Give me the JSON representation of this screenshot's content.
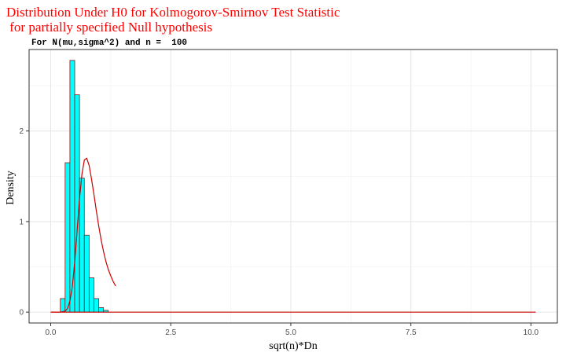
{
  "chart_data": {
    "type": "bar",
    "title_lines": [
      "Distribution Under H0 for Kolmogorov-Smirnov Test Statistic",
      " for partially specified Null hypothesis"
    ],
    "subtitle": "For N(mu,sigma^2) and n =  100",
    "xlabel": "sqrt(n)*Dn",
    "ylabel": "Density",
    "xlim": [
      -0.45,
      10.55
    ],
    "ylim": [
      -0.12,
      2.9
    ],
    "x_ticks": [
      0,
      2.5,
      5,
      7.5,
      10
    ],
    "x_tick_labels": [
      "0.0",
      "2.5",
      "5.0",
      "7.5",
      "10.0"
    ],
    "y_ticks": [
      0,
      1,
      2
    ],
    "y_tick_labels": [
      "0",
      "1",
      "2"
    ],
    "grid": true,
    "histogram": {
      "bin_width": 0.1,
      "fill": "#00ffff",
      "stroke": "#8b1a1a",
      "bins": [
        {
          "x0": 0.2,
          "density": 0.15
        },
        {
          "x0": 0.3,
          "density": 1.65
        },
        {
          "x0": 0.4,
          "density": 2.78
        },
        {
          "x0": 0.5,
          "density": 2.4
        },
        {
          "x0": 0.6,
          "density": 1.48
        },
        {
          "x0": 0.7,
          "density": 0.85
        },
        {
          "x0": 0.8,
          "density": 0.38
        },
        {
          "x0": 0.9,
          "density": 0.15
        },
        {
          "x0": 1.0,
          "density": 0.05
        },
        {
          "x0": 1.1,
          "density": 0.02
        }
      ]
    },
    "series": [
      {
        "type": "line",
        "color": "#cc0000",
        "x": [
          0,
          0.2,
          0.3,
          0.35,
          0.4,
          0.45,
          0.5,
          0.55,
          0.6,
          0.65,
          0.7,
          0.75,
          0.8,
          0.85,
          0.9,
          0.95,
          1.0,
          1.05,
          1.1,
          1.15,
          1.2,
          1.25,
          1.3,
          1.35
        ],
        "y": [
          0,
          0.0,
          0.01,
          0.04,
          0.12,
          0.28,
          0.55,
          0.9,
          1.25,
          1.52,
          1.68,
          1.7,
          1.62,
          1.47,
          1.3,
          1.12,
          0.95,
          0.8,
          0.67,
          0.56,
          0.47,
          0.4,
          0.34,
          0.29
        ]
      },
      {
        "type": "line",
        "color": "#cc0000",
        "x": [
          0,
          10.1
        ],
        "y": [
          0,
          0
        ]
      }
    ]
  }
}
